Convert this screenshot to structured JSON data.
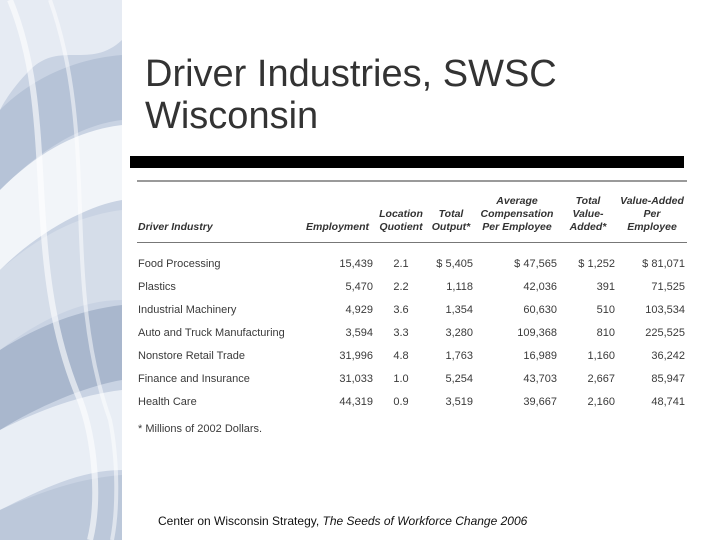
{
  "slide": {
    "title_line1": "Driver Industries, SWSC",
    "title_line2": "Wisconsin",
    "footnote": "* Millions of 2002 Dollars.",
    "source_prefix": "Center on Wisconsin Strategy, ",
    "source_title": "The Seeds of Workforce Change 2006"
  },
  "table": {
    "headers": [
      "Driver Industry",
      "Employment",
      "Location Quotient",
      "Total Output*",
      "Average Compensation Per Employee",
      "Total Value-Added*",
      "Value-Added Per Employee"
    ],
    "rows": [
      [
        "Food Processing",
        "15,439",
        "2.1",
        "$ 5,405",
        "$ 47,565",
        "$ 1,252",
        "$ 81,071"
      ],
      [
        "Plastics",
        "5,470",
        "2.2",
        "1,118",
        "42,036",
        "391",
        "71,525"
      ],
      [
        "Industrial Machinery",
        "4,929",
        "3.6",
        "1,354",
        "60,630",
        "510",
        "103,534"
      ],
      [
        "Auto and Truck Manufacturing",
        "3,594",
        "3.3",
        "3,280",
        "109,368",
        "810",
        "225,525"
      ],
      [
        "Nonstore Retail Trade",
        "31,996",
        "4.8",
        "1,763",
        "16,989",
        "1,160",
        "36,242"
      ],
      [
        "Finance and Insurance",
        "31,033",
        "1.0",
        "5,254",
        "43,703",
        "2,667",
        "85,947"
      ],
      [
        "Health Care",
        "44,319",
        "0.9",
        "3,519",
        "39,667",
        "2,160",
        "48,741"
      ]
    ]
  },
  "colors": {
    "band_base": "#c9d3e3",
    "band_light": "#e6ebf3",
    "band_dark": "#a9b7cd",
    "title_text": "#333333"
  }
}
